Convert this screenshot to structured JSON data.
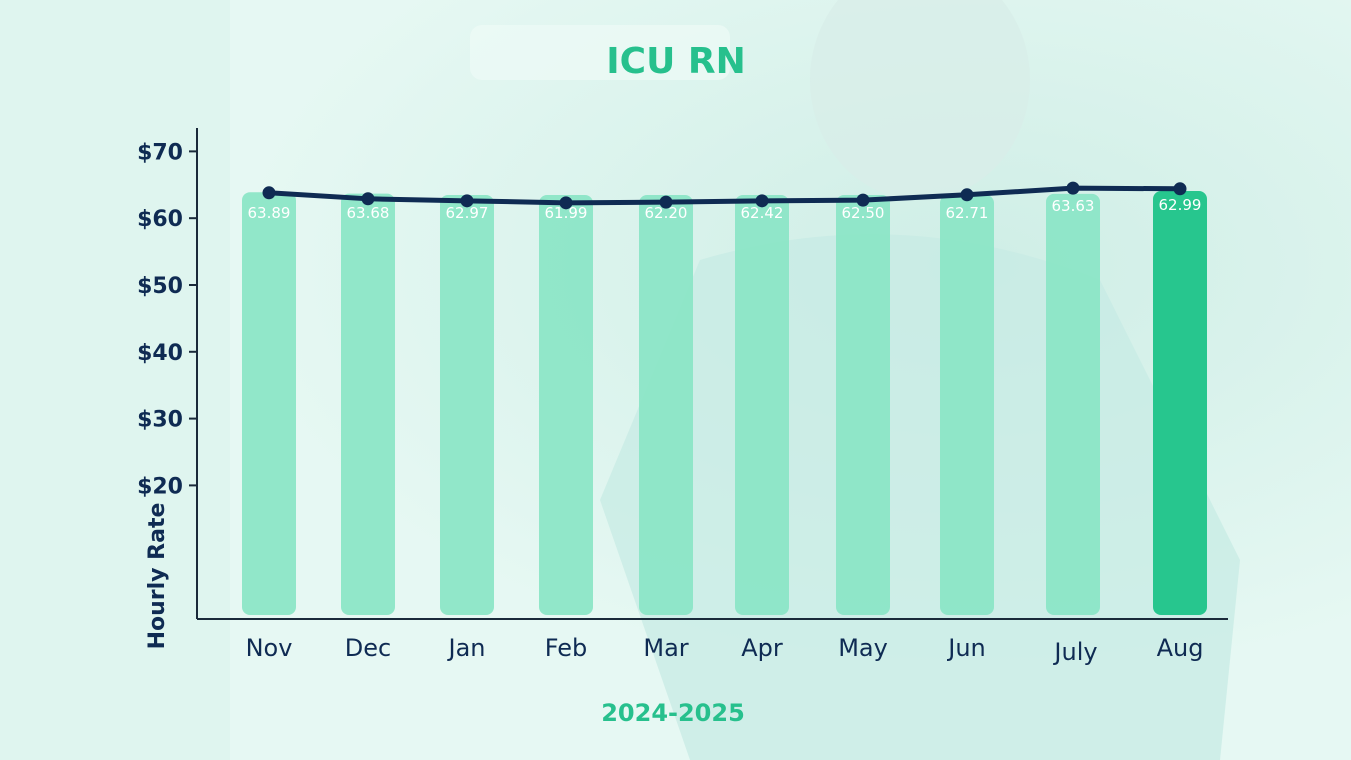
{
  "chart_data": {
    "type": "bar",
    "title": "ICU RN",
    "xlabel": "2024-2025",
    "ylabel": "Hourly Rate",
    "categories": [
      "Nov",
      "Dec",
      "Jan",
      "Feb",
      "Mar",
      "Apr",
      "May",
      "Jun",
      "July",
      "Aug"
    ],
    "series": [
      {
        "values": [
          63.89,
          63.68,
          62.97,
          61.99,
          62.2,
          62.42,
          62.5,
          62.71,
          63.63,
          62.99
        ]
      }
    ],
    "line_values": [
      63.8,
      62.9,
      62.6,
      62.3,
      62.4,
      62.6,
      62.7,
      63.5,
      64.5,
      64.4
    ],
    "yticks": [
      "$70",
      "$60",
      "$50",
      "$40",
      "$30",
      "$20"
    ],
    "ytick_values": [
      70,
      60,
      50,
      40,
      30,
      20
    ],
    "ylim": [
      0,
      73.5
    ],
    "legend": "none",
    "grid": false,
    "colors": {
      "title": "#27c08d",
      "bar": "#8ae5c6",
      "bar_highlight": "#27c68e",
      "line": "#0f2b53",
      "axis": "#1a2a3a",
      "tick_text": "#0f2b53",
      "data_label": "#ffffff",
      "xlabel": "#27c08d"
    }
  }
}
